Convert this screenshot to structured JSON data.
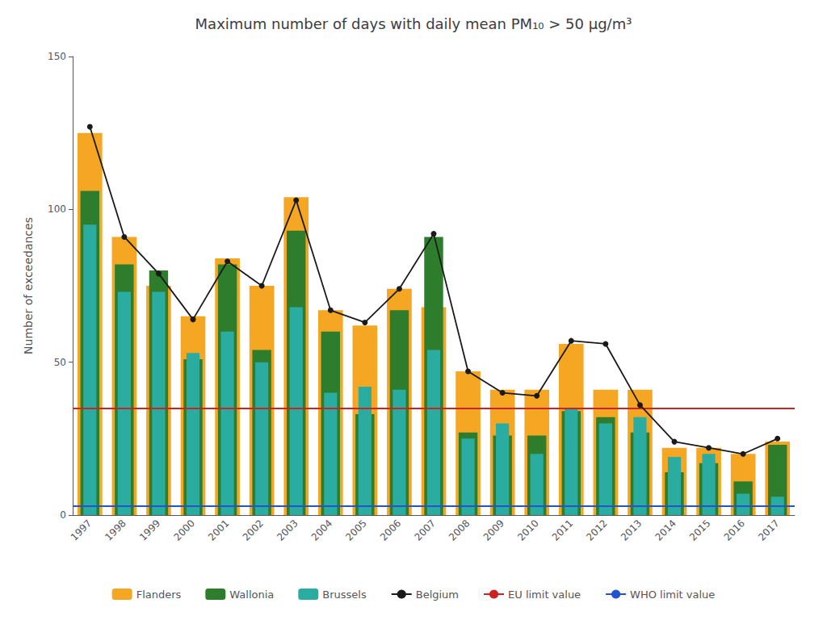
{
  "chart_data": {
    "type": "bar",
    "title": "Maximum number of days with daily mean PM₁₀ > 50 μg/m³",
    "ylabel": "Number of exceedances",
    "categories": [
      1997,
      1998,
      1999,
      2000,
      2001,
      2002,
      2003,
      2004,
      2005,
      2006,
      2007,
      2008,
      2009,
      2010,
      2011,
      2012,
      2013,
      2014,
      2015,
      2016,
      2017
    ],
    "series": [
      {
        "name": "Flanders",
        "type": "bar",
        "color": "#F5A623",
        "values": [
          125,
          91,
          75,
          65,
          84,
          75,
          104,
          67,
          62,
          74,
          68,
          47,
          41,
          41,
          56,
          41,
          41,
          22,
          22,
          20,
          24
        ]
      },
      {
        "name": "Wallonia",
        "type": "bar",
        "color": "#2D7D2D",
        "values": [
          106,
          82,
          80,
          51,
          82,
          54,
          93,
          60,
          33,
          67,
          91,
          27,
          26,
          26,
          34,
          32,
          27,
          14,
          17,
          11,
          23
        ]
      },
      {
        "name": "Brussels",
        "type": "bar",
        "color": "#2AADA0",
        "values": [
          95,
          73,
          73,
          53,
          60,
          50,
          68,
          40,
          42,
          41,
          54,
          25,
          30,
          20,
          35,
          30,
          32,
          19,
          20,
          7,
          6
        ]
      },
      {
        "name": "Belgium",
        "type": "line",
        "color": "#1a1a1a",
        "marker": "circle",
        "values": [
          127,
          91,
          79,
          64,
          83,
          75,
          103,
          67,
          63,
          74,
          92,
          47,
          40,
          39,
          57,
          56,
          36,
          24,
          22,
          20,
          25
        ]
      },
      {
        "name": "EU limit value",
        "type": "hline",
        "color": "#CC2222",
        "value": 35
      },
      {
        "name": "WHO limit value",
        "type": "hline",
        "color": "#2255CC",
        "value": 3
      }
    ],
    "ylim": [
      0,
      150
    ],
    "yticks": [
      0,
      50,
      100,
      150
    ],
    "grid": false,
    "legend": "bottom"
  }
}
